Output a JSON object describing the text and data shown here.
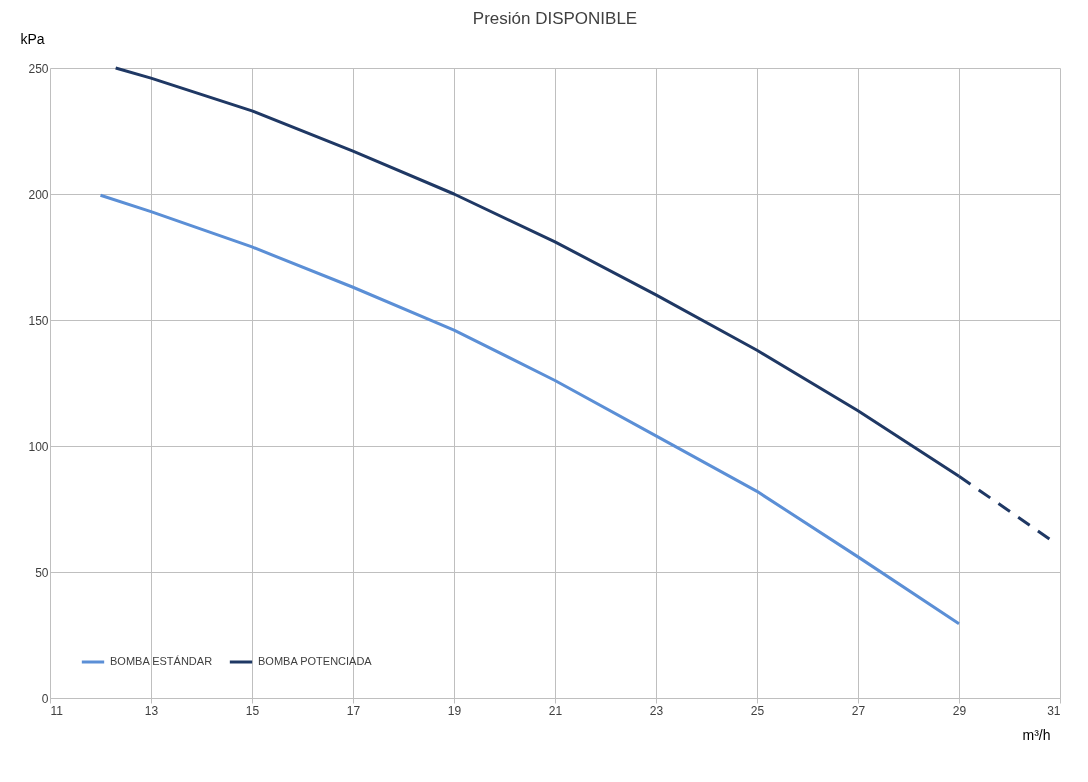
{
  "chart_data": {
    "type": "line",
    "title": "Presión  DISPONIBLE",
    "xlabel": "m³/h",
    "ylabel": "kPa",
    "xlim": [
      11,
      31
    ],
    "xticks": [
      11,
      13,
      15,
      17,
      19,
      21,
      23,
      25,
      27,
      29,
      31
    ],
    "ylim": [
      0,
      250
    ],
    "yticks": [
      0,
      50,
      100,
      150,
      200,
      250
    ],
    "grid": true,
    "legend": "bottom left",
    "line_style": "solid",
    "marker": "none",
    "series": [
      {
        "name": "BOMBA ESTÁNDAR",
        "color": "#5b8fd6",
        "x": [
          12,
          13,
          15,
          17,
          19,
          21,
          23,
          25,
          27,
          29
        ],
        "values": [
          199.5,
          193,
          179,
          163,
          146,
          126,
          104,
          82,
          56,
          29.5
        ]
      },
      {
        "name": "BOMBA POTENCIADA",
        "color": "#1f3864",
        "x": [
          12.3,
          13,
          15,
          17,
          19,
          21,
          23,
          25,
          27,
          29
        ],
        "values": [
          250,
          246,
          233,
          217,
          200,
          181,
          160,
          138,
          114,
          88
        ]
      },
      {
        "color": "#1f3864",
        "line_style": "dashed",
        "x": [
          29,
          30.8
        ],
        "values": [
          88,
          63
        ]
      }
    ]
  }
}
